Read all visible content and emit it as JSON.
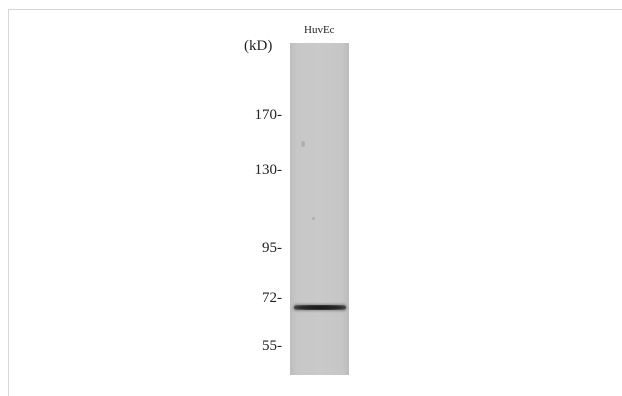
{
  "blot": {
    "lane_label": "HuvEc",
    "unit_label": "(kD)",
    "markers": [
      "170-",
      "130-",
      "95-",
      "72-",
      "55-"
    ],
    "band": {
      "marker": "72-"
    }
  }
}
